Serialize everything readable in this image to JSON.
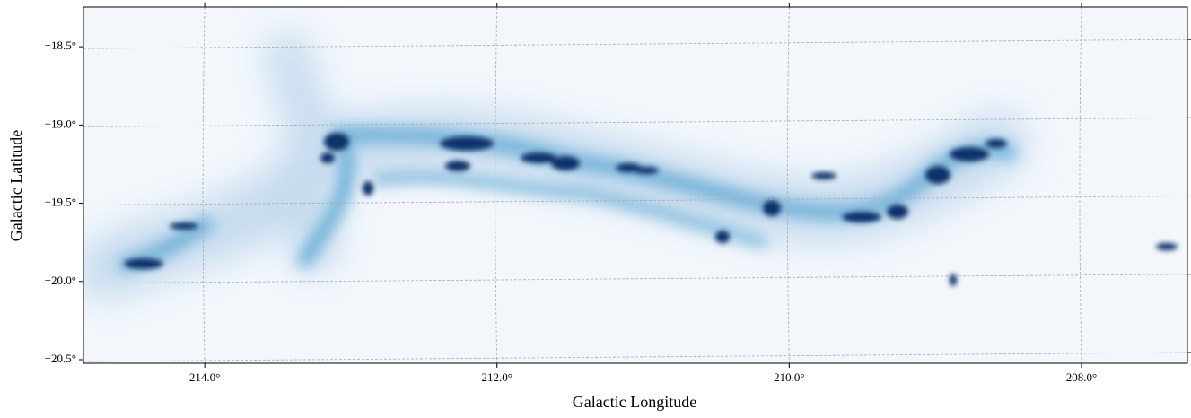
{
  "chart_data": {
    "type": "image",
    "xlabel": "Galactic Longitude",
    "ylabel": "Galactic Latitude",
    "xlim": [
      214.83,
      207.275
    ],
    "ylim": [
      -20.523,
      -18.247
    ],
    "xticks": [
      {
        "value": 214.0,
        "label": "214.0°"
      },
      {
        "value": 212.0,
        "label": "212.0°"
      },
      {
        "value": 210.0,
        "label": "210.0°"
      },
      {
        "value": 208.0,
        "label": "208.0°"
      }
    ],
    "yticks": [
      {
        "value": -18.5,
        "label": "−18.5°"
      },
      {
        "value": -19.0,
        "label": "−19.0°"
      },
      {
        "value": -19.5,
        "label": "−19.5°"
      },
      {
        "value": -20.0,
        "label": "−20.0°"
      },
      {
        "value": -20.5,
        "label": "−20.5°"
      }
    ],
    "grid": true
  }
}
